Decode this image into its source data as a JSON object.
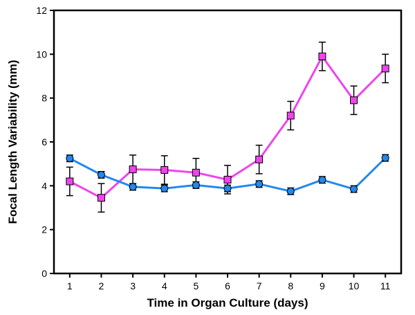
{
  "chart_data": {
    "type": "line",
    "title": "",
    "xlabel": "Time in Organ Culture (days)",
    "ylabel": "Focal Length Variability (mm)",
    "xlim": [
      0.5,
      11.5
    ],
    "ylim": [
      0,
      12
    ],
    "x_ticks": [
      1,
      2,
      3,
      4,
      5,
      6,
      7,
      8,
      9,
      10,
      11
    ],
    "y_ticks": [
      0,
      2,
      4,
      6,
      8,
      10,
      12
    ],
    "grid": false,
    "legend": "none",
    "series": [
      {
        "marker": "square",
        "color": "#ee44ee",
        "x": [
          1,
          2,
          3,
          4,
          5,
          6,
          7,
          8,
          9,
          10,
          11
        ],
        "y": [
          4.2,
          3.45,
          4.75,
          4.72,
          4.6,
          4.28,
          5.2,
          7.2,
          9.9,
          7.9,
          9.35
        ],
        "error": [
          0.65,
          0.65,
          0.65,
          0.65,
          0.65,
          0.65,
          0.65,
          0.65,
          0.65,
          0.65,
          0.65
        ]
      },
      {
        "marker": "circle",
        "color": "#2288ee",
        "x": [
          1,
          2,
          3,
          4,
          5,
          6,
          7,
          8,
          9,
          10,
          11
        ],
        "y": [
          5.25,
          4.5,
          3.95,
          3.88,
          4.03,
          3.88,
          4.08,
          3.75,
          4.27,
          3.85,
          5.27
        ],
        "error": [
          0.15,
          0.15,
          0.15,
          0.15,
          0.15,
          0.15,
          0.15,
          0.15,
          0.15,
          0.15,
          0.15
        ]
      }
    ]
  }
}
